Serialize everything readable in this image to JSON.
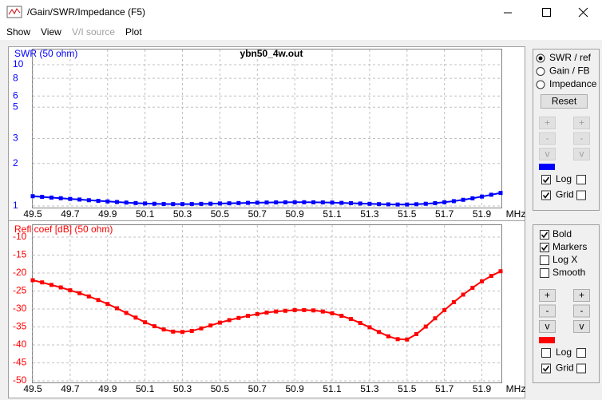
{
  "window": {
    "title": "/Gain/SWR/Impedance (F5)"
  },
  "menu": [
    {
      "label": "Show",
      "disabled": false
    },
    {
      "label": "View",
      "disabled": false
    },
    {
      "label": "V/I source",
      "disabled": true
    },
    {
      "label": "Plot",
      "disabled": false
    }
  ],
  "chart_data": [
    {
      "type": "line",
      "title": "ybn50_4w.out",
      "ylabel": "SWR (50 ohm)",
      "xlabel": "MHz",
      "yscale": "log",
      "grid": true,
      "markers": true,
      "bold": true,
      "xlim": [
        49.5,
        52.0
      ],
      "xticks": [
        49.5,
        49.7,
        49.9,
        50.1,
        50.3,
        50.5,
        50.7,
        50.9,
        51.1,
        51.3,
        51.5,
        51.7,
        51.9
      ],
      "ylim": [
        1,
        10
      ],
      "yticks": [
        1,
        2,
        3,
        5,
        6,
        8,
        10
      ],
      "x": [
        49.5,
        49.55,
        49.6,
        49.65,
        49.7,
        49.75,
        49.8,
        49.85,
        49.9,
        49.95,
        50.0,
        50.05,
        50.1,
        50.15,
        50.2,
        50.25,
        50.3,
        50.35,
        50.4,
        50.45,
        50.5,
        50.55,
        50.6,
        50.65,
        50.7,
        50.75,
        50.8,
        50.85,
        50.9,
        50.95,
        51.0,
        51.05,
        51.1,
        51.15,
        51.2,
        51.25,
        51.3,
        51.35,
        51.4,
        51.45,
        51.5,
        51.55,
        51.6,
        51.65,
        51.7,
        51.75,
        51.8,
        51.85,
        51.9,
        51.95,
        52.0
      ],
      "series": [
        {
          "name": "SWR",
          "color": "#0000ff",
          "values": [
            1.173,
            1.16,
            1.147,
            1.135,
            1.122,
            1.111,
            1.099,
            1.088,
            1.077,
            1.067,
            1.057,
            1.049,
            1.042,
            1.037,
            1.033,
            1.031,
            1.031,
            1.032,
            1.035,
            1.038,
            1.042,
            1.045,
            1.049,
            1.052,
            1.055,
            1.058,
            1.06,
            1.062,
            1.063,
            1.063,
            1.062,
            1.06,
            1.057,
            1.052,
            1.047,
            1.041,
            1.036,
            1.031,
            1.027,
            1.024,
            1.024,
            1.029,
            1.037,
            1.048,
            1.063,
            1.082,
            1.106,
            1.133,
            1.166,
            1.201,
            1.237
          ]
        }
      ]
    },
    {
      "type": "line",
      "ylabel": "Refl coef [dB] (50 ohm)",
      "xlabel": "MHz",
      "grid": true,
      "markers": true,
      "bold": true,
      "xlim": [
        49.5,
        52.0
      ],
      "xticks": [
        49.5,
        49.7,
        49.9,
        50.1,
        50.3,
        50.5,
        50.7,
        50.9,
        51.1,
        51.3,
        51.5,
        51.7,
        51.9
      ],
      "ylim": [
        -50,
        -10
      ],
      "yticks": [
        -10,
        -15,
        -20,
        -25,
        -30,
        -35,
        -40,
        -45,
        -50
      ],
      "x": [
        49.5,
        49.55,
        49.6,
        49.65,
        49.7,
        49.75,
        49.8,
        49.85,
        49.9,
        49.95,
        50.0,
        50.05,
        50.1,
        50.15,
        50.2,
        50.25,
        50.3,
        50.35,
        50.4,
        50.45,
        50.5,
        50.55,
        50.6,
        50.65,
        50.7,
        50.75,
        50.8,
        50.85,
        50.9,
        50.95,
        51.0,
        51.05,
        51.1,
        51.15,
        51.2,
        51.25,
        51.3,
        51.35,
        51.4,
        51.45,
        51.5,
        51.55,
        51.6,
        51.65,
        51.7,
        51.75,
        51.8,
        51.85,
        51.9,
        51.95,
        52.0
      ],
      "series": [
        {
          "name": "Refl coef",
          "color": "#ff0000",
          "values": [
            -22.0,
            -22.6,
            -23.3,
            -24.0,
            -24.8,
            -25.6,
            -26.5,
            -27.5,
            -28.6,
            -29.8,
            -31.1,
            -32.4,
            -33.7,
            -34.8,
            -35.7,
            -36.3,
            -36.4,
            -36.1,
            -35.4,
            -34.6,
            -33.8,
            -33.1,
            -32.5,
            -31.9,
            -31.4,
            -31.0,
            -30.7,
            -30.5,
            -30.3,
            -30.3,
            -30.4,
            -30.7,
            -31.2,
            -31.9,
            -32.8,
            -33.9,
            -35.1,
            -36.4,
            -37.6,
            -38.4,
            -38.5,
            -37.0,
            -34.9,
            -32.6,
            -30.3,
            -28.1,
            -26.0,
            -24.1,
            -22.3,
            -20.8,
            -19.5
          ]
        }
      ]
    }
  ],
  "controls": {
    "upper": {
      "radios": [
        {
          "label": "SWR / ref",
          "checked": true
        },
        {
          "label": "Gain / FB",
          "checked": false
        },
        {
          "label": "Impedance",
          "checked": false
        }
      ],
      "reset": "Reset",
      "buttons_enabled": false,
      "buttons": [
        "+",
        "+",
        "-",
        "-",
        "v",
        "v"
      ],
      "checks": [
        {
          "label": "Log",
          "checked": true,
          "right_checked": false
        },
        {
          "label": "Grid",
          "checked": true,
          "right_checked": false
        }
      ]
    },
    "lower": {
      "options": [
        {
          "label": "Bold",
          "checked": true
        },
        {
          "label": "Markers",
          "checked": true
        },
        {
          "label": "Log X",
          "checked": false
        },
        {
          "label": "Smooth",
          "checked": false
        }
      ],
      "buttons_enabled": true,
      "buttons": [
        "+",
        "+",
        "-",
        "-",
        "v",
        "v"
      ],
      "checks": [
        {
          "label": "Log",
          "checked": false,
          "right_checked": false
        },
        {
          "label": "Grid",
          "checked": true,
          "right_checked": false
        }
      ]
    }
  }
}
